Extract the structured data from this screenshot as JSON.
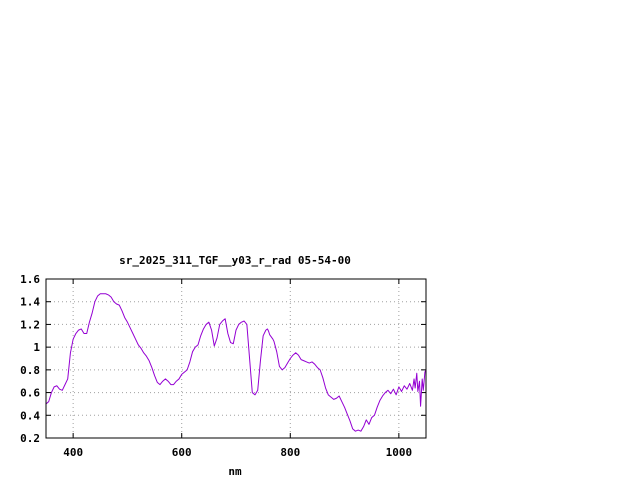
{
  "chart_data": {
    "type": "line",
    "title": "sr_2025_311_TGF__y03_r_rad 05-54-00",
    "xlabel": "nm",
    "ylabel": "",
    "xlim": [
      350,
      1050
    ],
    "ylim": [
      0.2,
      1.6
    ],
    "xticks": [
      400,
      600,
      800,
      1000
    ],
    "xtick_labels": [
      "400",
      "600",
      "800",
      "1000"
    ],
    "yticks": [
      0.2,
      0.4,
      0.6,
      0.8,
      1.0,
      1.2,
      1.4,
      1.6
    ],
    "ytick_labels": [
      "0.2",
      "0.4",
      "0.6",
      "0.8",
      "1",
      "1.2",
      "1.4",
      "1.6"
    ],
    "grid": true,
    "legend": "none",
    "colors": {
      "series": "#9400d3",
      "grid": "#a0a0a0",
      "axes": "#000000"
    },
    "series": [
      {
        "x": [
          350,
          355,
          360,
          365,
          370,
          375,
          380,
          385,
          390,
          395,
          400,
          405,
          410,
          415,
          420,
          425,
          430,
          435,
          440,
          445,
          450,
          455,
          460,
          465,
          470,
          475,
          480,
          485,
          490,
          495,
          500,
          505,
          510,
          515,
          520,
          525,
          530,
          535,
          540,
          545,
          550,
          555,
          560,
          565,
          570,
          575,
          580,
          585,
          590,
          595,
          600,
          605,
          610,
          615,
          620,
          625,
          630,
          635,
          640,
          645,
          650,
          655,
          660,
          665,
          670,
          675,
          680,
          685,
          690,
          695,
          700,
          705,
          710,
          715,
          720,
          725,
          730,
          735,
          740,
          745,
          750,
          755,
          758,
          760,
          762,
          765,
          768,
          770,
          775,
          780,
          785,
          790,
          795,
          800,
          805,
          810,
          815,
          820,
          825,
          830,
          835,
          840,
          845,
          850,
          855,
          860,
          865,
          870,
          875,
          880,
          885,
          890,
          895,
          900,
          905,
          910,
          915,
          920,
          925,
          930,
          935,
          940,
          945,
          950,
          955,
          960,
          965,
          970,
          975,
          980,
          985,
          990,
          995,
          1000,
          1005,
          1010,
          1015,
          1020,
          1025,
          1028,
          1030,
          1033,
          1035,
          1038,
          1040,
          1043,
          1045,
          1048,
          1050
        ],
        "y": [
          0.5,
          0.52,
          0.6,
          0.65,
          0.66,
          0.63,
          0.62,
          0.67,
          0.72,
          0.95,
          1.07,
          1.12,
          1.15,
          1.16,
          1.12,
          1.12,
          1.22,
          1.3,
          1.4,
          1.45,
          1.47,
          1.47,
          1.47,
          1.46,
          1.44,
          1.4,
          1.38,
          1.37,
          1.32,
          1.26,
          1.22,
          1.17,
          1.12,
          1.07,
          1.02,
          0.99,
          0.95,
          0.92,
          0.88,
          0.82,
          0.75,
          0.69,
          0.67,
          0.7,
          0.72,
          0.7,
          0.67,
          0.67,
          0.7,
          0.72,
          0.76,
          0.78,
          0.8,
          0.87,
          0.96,
          1.0,
          1.02,
          1.1,
          1.16,
          1.2,
          1.22,
          1.15,
          1.01,
          1.08,
          1.2,
          1.23,
          1.25,
          1.12,
          1.04,
          1.03,
          1.15,
          1.2,
          1.22,
          1.23,
          1.2,
          0.9,
          0.6,
          0.58,
          0.62,
          0.88,
          1.1,
          1.15,
          1.16,
          1.14,
          1.11,
          1.09,
          1.07,
          1.05,
          0.96,
          0.83,
          0.8,
          0.82,
          0.86,
          0.9,
          0.93,
          0.95,
          0.93,
          0.89,
          0.88,
          0.87,
          0.86,
          0.87,
          0.85,
          0.82,
          0.8,
          0.73,
          0.64,
          0.58,
          0.56,
          0.54,
          0.55,
          0.57,
          0.52,
          0.47,
          0.41,
          0.35,
          0.28,
          0.26,
          0.27,
          0.26,
          0.3,
          0.36,
          0.32,
          0.38,
          0.4,
          0.47,
          0.53,
          0.57,
          0.6,
          0.62,
          0.59,
          0.63,
          0.58,
          0.65,
          0.61,
          0.66,
          0.63,
          0.68,
          0.62,
          0.72,
          0.64,
          0.77,
          0.61,
          0.7,
          0.48,
          0.72,
          0.62,
          0.78,
          0.8
        ]
      }
    ]
  }
}
